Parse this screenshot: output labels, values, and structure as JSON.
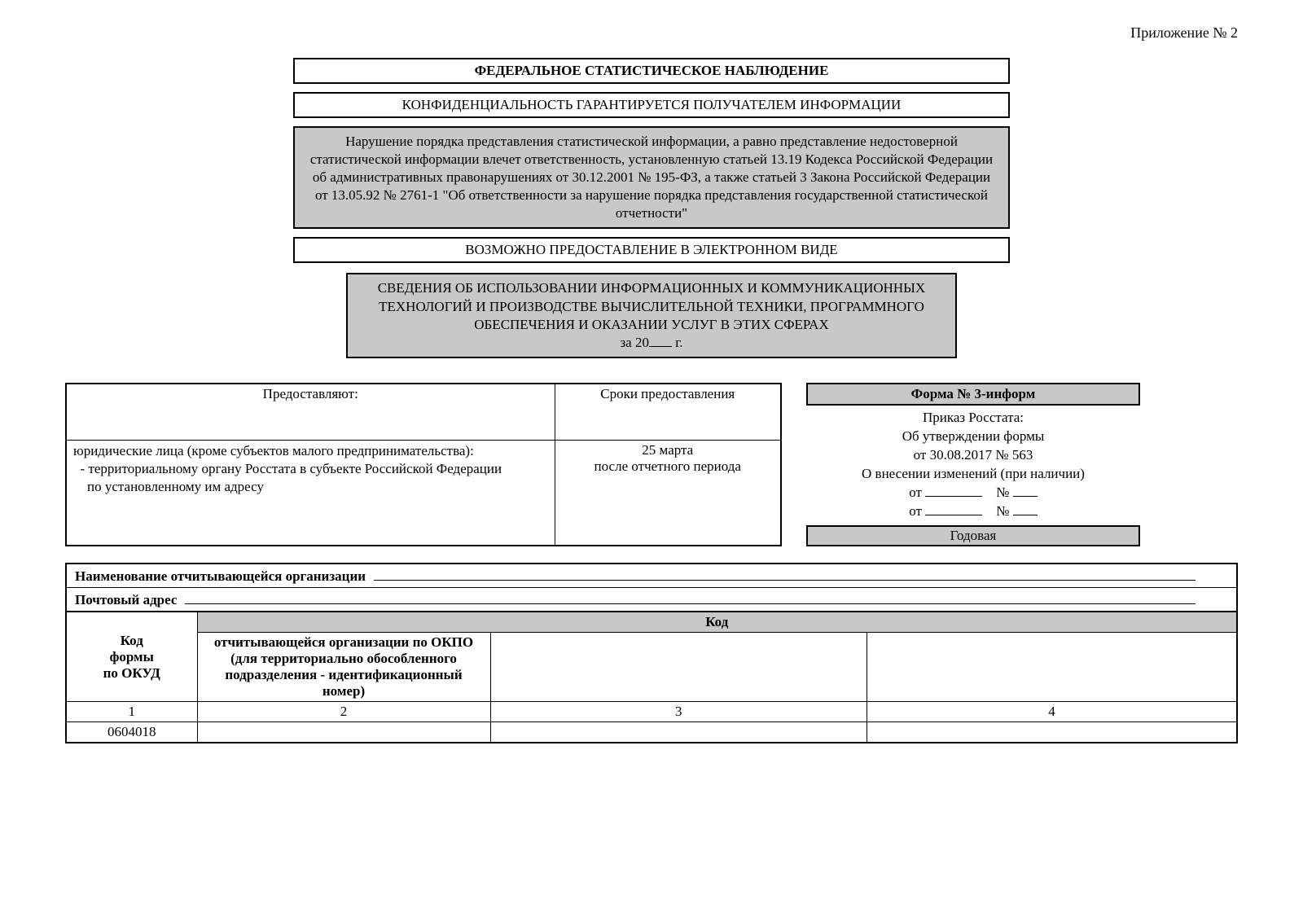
{
  "appendix": "Приложение № 2",
  "b1": "ФЕДЕРАЛЬНОЕ СТАТИСТИЧЕСКОЕ НАБЛЮДЕНИЕ",
  "b2": "КОНФИДЕНЦИАЛЬНОСТЬ ГАРАНТИРУЕТСЯ ПОЛУЧАТЕЛЕМ ИНФОРМАЦИИ",
  "b3": "Нарушение порядка представления статистической информации, а равно представление недостоверной статистической информации влечет ответственность, установленную статьей 13.19 Кодекса Российской Федерации об административных правонарушениях от 30.12.2001 № 195-ФЗ, а также статьей 3 Закона Российской Федерации от 13.05.92 № 2761-1 \"Об ответственности за нарушение порядка представления государственной статистической отчетности\"",
  "b4": "ВОЗМОЖНО ПРЕДОСТАВЛЕНИЕ В ЭЛЕКТРОННОМ ВИДЕ",
  "b5a": "СВЕДЕНИЯ ОБ ИСПОЛЬЗОВАНИИ ИНФОРМАЦИОННЫХ И КОММУНИКАЦИОННЫХ ТЕХНОЛОГИЙ И ПРОИЗВОДСТВЕ ВЫЧИСЛИТЕЛЬНОЙ ТЕХНИКИ, ПРОГРАММНОГО ОБЕСПЕЧЕНИЯ И ОКАЗАНИИ УСЛУГ В ЭТИХ СФЕРАХ",
  "b5_pre": "за 20",
  "b5_post": " г.",
  "submit": {
    "h1": "Предоставляют:",
    "h2": "Сроки предоставления",
    "left1": "юридические лица (кроме субъектов малого предпринимательства):",
    "left2": "- территориальному органу Росстата в субъекте Российской Федерации",
    "left3": "по установленному им адресу",
    "r1": "25 марта",
    "r2": "после отчетного периода"
  },
  "form": {
    "title": "Форма № 3-информ",
    "l1": "Приказ Росстата:",
    "l2": "Об утверждении формы",
    "l3": "от 30.08.2017 № 563",
    "l4": "О внесении изменений (при наличии)",
    "ot": "от",
    "no": "№",
    "annual": "Годовая"
  },
  "org": {
    "name_label": "Наименование отчитывающейся организации",
    "addr_label": "Почтовый адрес",
    "kod_header": "Код",
    "col0a": "Код",
    "col0b": "формы",
    "col0c": "по ОКУД",
    "col1a": "отчитывающейся организации по ОКПО",
    "col1b": "(для территориально обособленного",
    "col1c": "подразделения - идентификационный номер)",
    "n1": "1",
    "n2": "2",
    "n3": "3",
    "n4": "4",
    "okud": "0604018"
  },
  "colors": {
    "gray": "#c8c8c8",
    "border": "#000000",
    "bg": "#ffffff",
    "text": "#000000"
  }
}
